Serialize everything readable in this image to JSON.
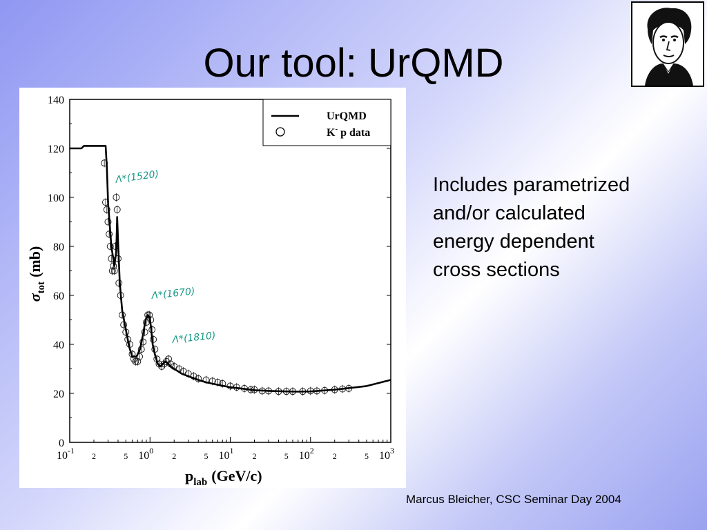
{
  "slide": {
    "title": "Our tool: UrQMD",
    "body_lines": [
      "Includes parametrized",
      "and/or calculated",
      "energy dependent",
      "cross sections"
    ],
    "footer": "Marcus Bleicher, CSC Seminar Day 2004",
    "accent": "#8f97f2"
  },
  "portrait": {
    "icon": "portrait-engraving-icon"
  },
  "chart_data": {
    "type": "line",
    "x_scale": "log",
    "ylabel_main": "σ",
    "ylabel_sub": "tot",
    "ylabel_unit": "(mb)",
    "xlabel_main": "p",
    "xlabel_sub": "lab",
    "xlabel_unit": "(GeV/c)",
    "xlim": [
      0.1,
      1000
    ],
    "ylim": [
      0,
      140
    ],
    "y_ticks": [
      "0",
      "20",
      "40",
      "60",
      "80",
      "100",
      "120",
      "140"
    ],
    "x_decade_bases": [
      "10",
      "10",
      "10",
      "10",
      "10"
    ],
    "x_decade_exps": [
      "-1",
      "0",
      "1",
      "2",
      "3"
    ],
    "x_minor_labels": [
      "2",
      "5",
      "2",
      "5",
      "2",
      "5",
      "2",
      "5"
    ],
    "legend": {
      "line_label": "UrQMD",
      "marker_label_pre": "K",
      "marker_label_sup": "-",
      "marker_label_post": " p data",
      "position": "top-right"
    },
    "annotations": [
      "Λ*(1520)",
      "Λ*(1670)",
      "Λ*(1810)"
    ],
    "series": [
      {
        "name": "UrQMD",
        "style": "line",
        "x": [
          0.1,
          0.14,
          0.15,
          0.28,
          0.29,
          0.3,
          0.33,
          0.36,
          0.38,
          0.39,
          0.4,
          0.42,
          0.45,
          0.5,
          0.55,
          0.6,
          0.68,
          0.75,
          0.82,
          0.88,
          0.94,
          0.99,
          1.03,
          1.08,
          1.15,
          1.25,
          1.35,
          1.45,
          1.55,
          1.7,
          1.8,
          2.0,
          2.5,
          3,
          4,
          5,
          7,
          10,
          15,
          20,
          30,
          50,
          70,
          100,
          200,
          500,
          1000
        ],
        "y": [
          120,
          120,
          121,
          121,
          112,
          98,
          80,
          72,
          78,
          92,
          82,
          65,
          54,
          46,
          39,
          35,
          35,
          38,
          44,
          50,
          52,
          51,
          47,
          40,
          36,
          32,
          31,
          32,
          33,
          32,
          31,
          30,
          28,
          27,
          25.5,
          24.5,
          23.5,
          22.5,
          21.8,
          21.3,
          21.0,
          20.8,
          20.7,
          20.8,
          21.5,
          23.0,
          25.5
        ]
      },
      {
        "name": "K- p data",
        "style": "markers",
        "x": [
          0.27,
          0.28,
          0.29,
          0.3,
          0.31,
          0.32,
          0.33,
          0.34,
          0.35,
          0.36,
          0.37,
          0.38,
          0.39,
          0.4,
          0.41,
          0.43,
          0.45,
          0.47,
          0.5,
          0.53,
          0.56,
          0.6,
          0.63,
          0.66,
          0.7,
          0.74,
          0.78,
          0.82,
          0.86,
          0.9,
          0.94,
          0.98,
          1.02,
          1.06,
          1.1,
          1.15,
          1.22,
          1.3,
          1.4,
          1.5,
          1.6,
          1.7,
          1.8,
          2.0,
          2.3,
          2.6,
          3.0,
          3.5,
          4,
          5,
          6,
          7,
          8,
          10,
          12,
          15,
          18,
          20,
          25,
          30,
          40,
          50,
          60,
          80,
          100,
          120,
          150,
          200,
          250,
          300
        ],
        "y": [
          114,
          98,
          95,
          90,
          85,
          80,
          75,
          70,
          72,
          70,
          80,
          100,
          95,
          75,
          65,
          60,
          52,
          48,
          45,
          42,
          40,
          36,
          34,
          33,
          33,
          35,
          38,
          41,
          45,
          49,
          52,
          52,
          50,
          46,
          42,
          38,
          34,
          32,
          31,
          32,
          33,
          34,
          32,
          31,
          30,
          29,
          28,
          27,
          26,
          25.5,
          25,
          24.5,
          24,
          23,
          22.5,
          22,
          21.5,
          21.5,
          21,
          21,
          20.8,
          20.8,
          20.8,
          20.8,
          21,
          21,
          21.2,
          21.5,
          21.8,
          22
        ]
      }
    ]
  }
}
